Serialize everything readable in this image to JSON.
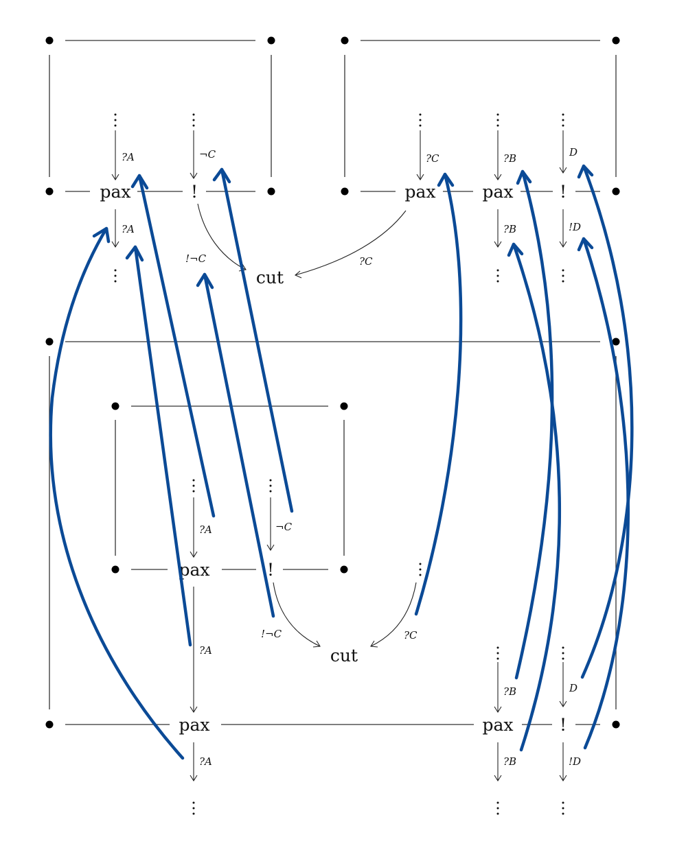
{
  "diagram": {
    "nodes": {
      "pax_a_top": "pax",
      "bang_c_top": "!",
      "cut_top": "cut",
      "pax_c_top": "pax",
      "pax_b_top": "pax",
      "bang_d_top": "!",
      "pax_a_inner": "pax",
      "bang_c_inner": "!",
      "cut_bottom": "cut",
      "pax_a_outer": "pax",
      "pax_b_outer": "pax",
      "bang_d_outer": "!"
    },
    "labels": {
      "qa_in_top": "?A",
      "negc_in_top": "¬C",
      "qa_out_top": "?A",
      "bangnegc_top": "!¬C",
      "qc_cut_top": "?C",
      "qc_in_top": "?C",
      "qb_in_top": "?B",
      "d_in_top": "D",
      "qb_out_top": "?B",
      "bangd_out_top": "!D",
      "qa_in_inner": "?A",
      "negc_in_inner": "¬C",
      "bangnegc_inner": "!¬C",
      "qc_cut_bottom": "?C",
      "qa_mid_outer": "?A",
      "qb_in_outer": "?B",
      "d_in_outer": "D",
      "qa_out_outer": "?A",
      "qb_out_outer": "?B",
      "bangd_out_outer": "!D"
    },
    "colors": {
      "annotation_arrow": "#0b4a96",
      "line": "#333333"
    }
  }
}
